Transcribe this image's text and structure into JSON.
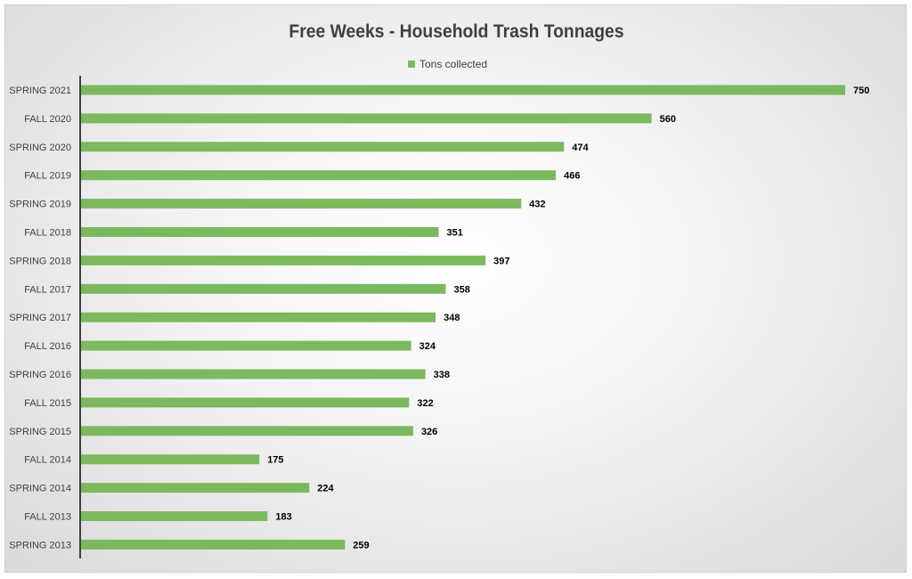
{
  "chart_data": {
    "type": "bar",
    "orientation": "horizontal",
    "title": "Free Weeks - Household Trash Tonnages",
    "categories": [
      "SPRING 2021",
      "FALL 2020",
      "SPRING 2020",
      "FALL 2019",
      "SPRING 2019",
      "FALL 2018",
      "SPRING 2018",
      "FALL 2017",
      "SPRING 2017",
      "FALL 2016",
      "SPRING 2016",
      "FALL 2015",
      "SPRING 2015",
      "FALL 2014",
      "SPRING 2014",
      "FALL 2013",
      "SPRING 2013"
    ],
    "series": [
      {
        "name": "Tons collected",
        "values": [
          750,
          560,
          474,
          466,
          432,
          351,
          397,
          358,
          348,
          324,
          338,
          322,
          326,
          175,
          224,
          183,
          259
        ],
        "color": "#7cb95e"
      }
    ],
    "data_labels": true,
    "legend": "top-center",
    "xlim": [
      0,
      750
    ],
    "grid": false
  }
}
